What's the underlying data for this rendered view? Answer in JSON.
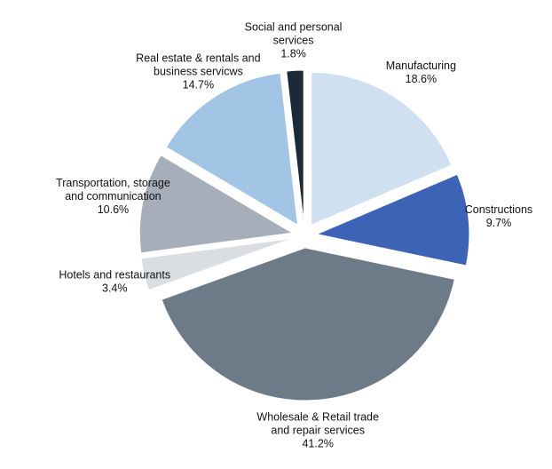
{
  "chart_data": {
    "type": "pie",
    "title": "",
    "start_angle_deg": 0,
    "direction": "clockwise",
    "exploded": true,
    "legend": "none",
    "slices": [
      {
        "name": "Manufacturing",
        "label_lines": [
          "Manufacturing"
        ],
        "value": 18.6,
        "value_label": "18.6%",
        "color": "#cfe1f1"
      },
      {
        "name": "Constructions",
        "label_lines": [
          "Constructions"
        ],
        "value": 9.7,
        "value_label": "9.7%",
        "color": "#3c63b5"
      },
      {
        "name": "Wholesale & Retail trade and repair services",
        "label_lines": [
          "Wholesale & Retail trade",
          "and repair services"
        ],
        "value": 41.2,
        "value_label": "41.2%",
        "color": "#6d7b89"
      },
      {
        "name": "Hotels and restaurants",
        "label_lines": [
          "Hotels and restaurants"
        ],
        "value": 3.4,
        "value_label": "3.4%",
        "color": "#dadde1"
      },
      {
        "name": "Transportation, storage and communication",
        "label_lines": [
          "Transportation, storage",
          "and communication"
        ],
        "value": 10.6,
        "value_label": "10.6%",
        "color": "#a5aeb9"
      },
      {
        "name": "Real estate & rentals and business servicws",
        "label_lines": [
          "Real estate & rentals and",
          "business servicws"
        ],
        "value": 14.7,
        "value_label": "14.7%",
        "color": "#a3c5e5"
      },
      {
        "name": "Social and personal services",
        "label_lines": [
          "Social and personal",
          "services"
        ],
        "value": 1.8,
        "value_label": "1.8%",
        "color": "#1b2a38"
      }
    ]
  }
}
